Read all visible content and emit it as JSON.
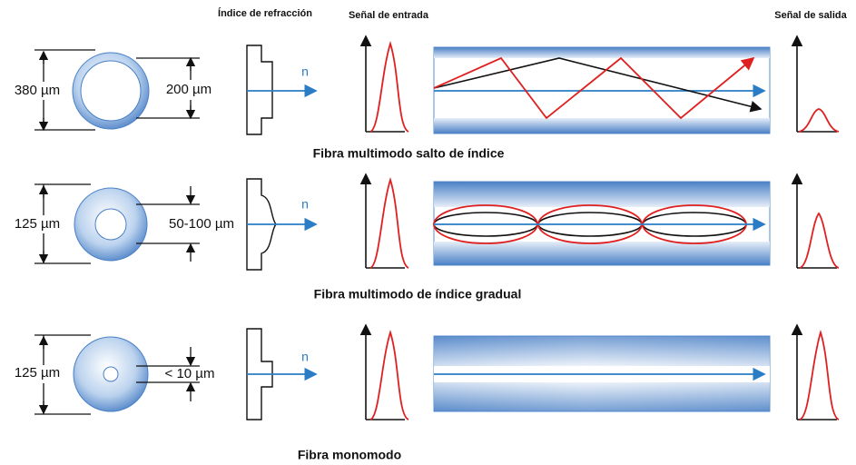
{
  "headers": {
    "index": "Índice de refracción",
    "input": "Señal de entrada",
    "output": "Señal de salida"
  },
  "rows": [
    {
      "outer": "380 µm",
      "core": "200 µm",
      "axis": "n",
      "caption": "Fibra multimodo salto de índice"
    },
    {
      "outer": "125 µm",
      "core": "50-100 µm",
      "axis": "n",
      "caption": "Fibra multimodo de índice gradual"
    },
    {
      "outer": "125 µm",
      "core": "< 10 µm",
      "axis": "n",
      "caption": "Fibra monomodo"
    }
  ]
}
